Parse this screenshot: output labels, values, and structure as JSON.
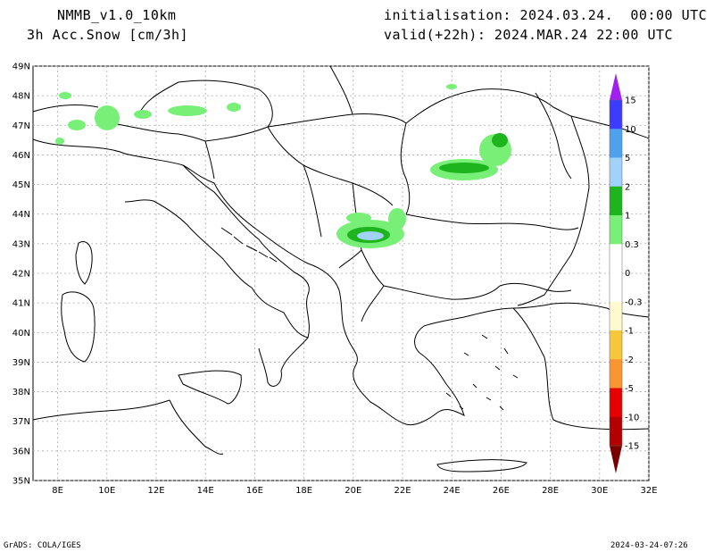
{
  "header": {
    "model": "NMMB_v1.0_10km",
    "field": "3h Acc.Snow [cm/3h]",
    "init": "initialisation: 2024.03.24.  00:00 UTC",
    "valid": "valid(+22h): 2024.MAR.24 22:00 UTC"
  },
  "footer": {
    "credit": "GrADS: COLA/IGES",
    "timestamp": "2024-03-24-07:26"
  },
  "map": {
    "lat_labels": [
      "49N",
      "48N",
      "47N",
      "46N",
      "45N",
      "44N",
      "43N",
      "42N",
      "41N",
      "40N",
      "39N",
      "38N",
      "37N",
      "36N",
      "35N"
    ],
    "lon_labels": [
      "8E",
      "10E",
      "12E",
      "14E",
      "16E",
      "18E",
      "20E",
      "22E",
      "24E",
      "26E",
      "28E",
      "30E",
      "32E"
    ],
    "lat_range": [
      35,
      49
    ],
    "lon_range": [
      7,
      32
    ]
  },
  "legend": {
    "labels": [
      "15",
      "10",
      "5",
      "2",
      "1",
      "0.3",
      "0",
      "-0.3",
      "-1",
      "-2",
      "-5",
      "-10",
      "-15"
    ],
    "colors": {
      "violet": "#a020f0",
      "blue": "#3c3cff",
      "mid_blue": "#50a0f0",
      "light_blue": "#a0d2fa",
      "dark_green": "#1eb41e",
      "light_green": "#78f078",
      "white": "#ffffff",
      "cream": "#fffacd",
      "yellow": "#f5c83c",
      "orange": "#fa9632",
      "red": "#e60000",
      "dark_red": "#b40000",
      "maroon": "#780000"
    }
  }
}
